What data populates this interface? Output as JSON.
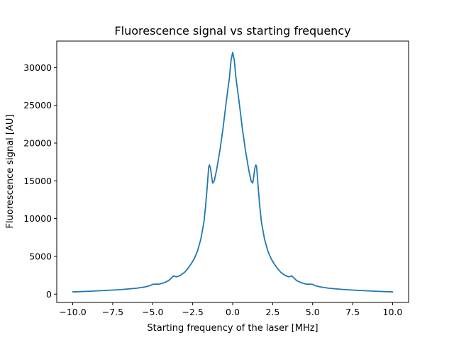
{
  "chart_data": {
    "type": "line",
    "title": "Fluorescence signal vs starting frequency",
    "xlabel": "Starting frequency of the laser [MHz]",
    "ylabel": "Fluorescence signal [AU]",
    "xlim": [
      -11.0,
      11.0
    ],
    "ylim": [
      -1100,
      33500
    ],
    "xticks": [
      -10.0,
      -7.5,
      -5.0,
      -2.5,
      0.0,
      2.5,
      5.0,
      7.5,
      10.0
    ],
    "xtick_labels": [
      "−10.0",
      "−7.5",
      "−5.0",
      "−2.5",
      "0.0",
      "2.5",
      "5.0",
      "7.5",
      "10.0"
    ],
    "yticks": [
      0,
      5000,
      10000,
      15000,
      20000,
      25000,
      30000
    ],
    "ytick_labels": [
      "0",
      "5000",
      "10000",
      "15000",
      "20000",
      "25000",
      "30000"
    ],
    "grid": false,
    "series": [
      {
        "color": "#1f77b4",
        "points": [
          [
            -10.0,
            300
          ],
          [
            -9.0,
            380
          ],
          [
            -8.0,
            480
          ],
          [
            -7.0,
            600
          ],
          [
            -6.0,
            790
          ],
          [
            -5.5,
            950
          ],
          [
            -5.2,
            1100
          ],
          [
            -5.0,
            1300
          ],
          [
            -4.8,
            1320
          ],
          [
            -4.6,
            1320
          ],
          [
            -4.3,
            1500
          ],
          [
            -4.0,
            1800
          ],
          [
            -3.8,
            2200
          ],
          [
            -3.7,
            2420
          ],
          [
            -3.6,
            2350
          ],
          [
            -3.5,
            2300
          ],
          [
            -3.3,
            2450
          ],
          [
            -3.0,
            2900
          ],
          [
            -2.8,
            3400
          ],
          [
            -2.6,
            4000
          ],
          [
            -2.4,
            4700
          ],
          [
            -2.2,
            5700
          ],
          [
            -2.0,
            7200
          ],
          [
            -1.8,
            9500
          ],
          [
            -1.7,
            11500
          ],
          [
            -1.6,
            14000
          ],
          [
            -1.5,
            16800
          ],
          [
            -1.45,
            17100
          ],
          [
            -1.38,
            16600
          ],
          [
            -1.3,
            15300
          ],
          [
            -1.25,
            14700
          ],
          [
            -1.15,
            15000
          ],
          [
            -1.0,
            16500
          ],
          [
            -0.8,
            19000
          ],
          [
            -0.6,
            22000
          ],
          [
            -0.4,
            25500
          ],
          [
            -0.2,
            28700
          ],
          [
            -0.1,
            31000
          ],
          [
            0.0,
            32000
          ],
          [
            0.1,
            31000
          ],
          [
            0.2,
            28700
          ],
          [
            0.4,
            25500
          ],
          [
            0.6,
            22000
          ],
          [
            0.8,
            19000
          ],
          [
            1.0,
            16500
          ],
          [
            1.15,
            15000
          ],
          [
            1.25,
            14700
          ],
          [
            1.3,
            15300
          ],
          [
            1.38,
            16600
          ],
          [
            1.45,
            17100
          ],
          [
            1.5,
            16800
          ],
          [
            1.6,
            14000
          ],
          [
            1.7,
            11500
          ],
          [
            1.8,
            9500
          ],
          [
            2.0,
            7200
          ],
          [
            2.2,
            5700
          ],
          [
            2.4,
            4700
          ],
          [
            2.6,
            4000
          ],
          [
            2.8,
            3400
          ],
          [
            3.0,
            2900
          ],
          [
            3.3,
            2450
          ],
          [
            3.5,
            2300
          ],
          [
            3.6,
            2350
          ],
          [
            3.7,
            2420
          ],
          [
            3.8,
            2200
          ],
          [
            4.0,
            1800
          ],
          [
            4.3,
            1500
          ],
          [
            4.6,
            1320
          ],
          [
            4.8,
            1320
          ],
          [
            5.0,
            1300
          ],
          [
            5.2,
            1100
          ],
          [
            5.5,
            950
          ],
          [
            6.0,
            790
          ],
          [
            7.0,
            600
          ],
          [
            8.0,
            480
          ],
          [
            9.0,
            380
          ],
          [
            10.0,
            300
          ]
        ]
      }
    ]
  }
}
